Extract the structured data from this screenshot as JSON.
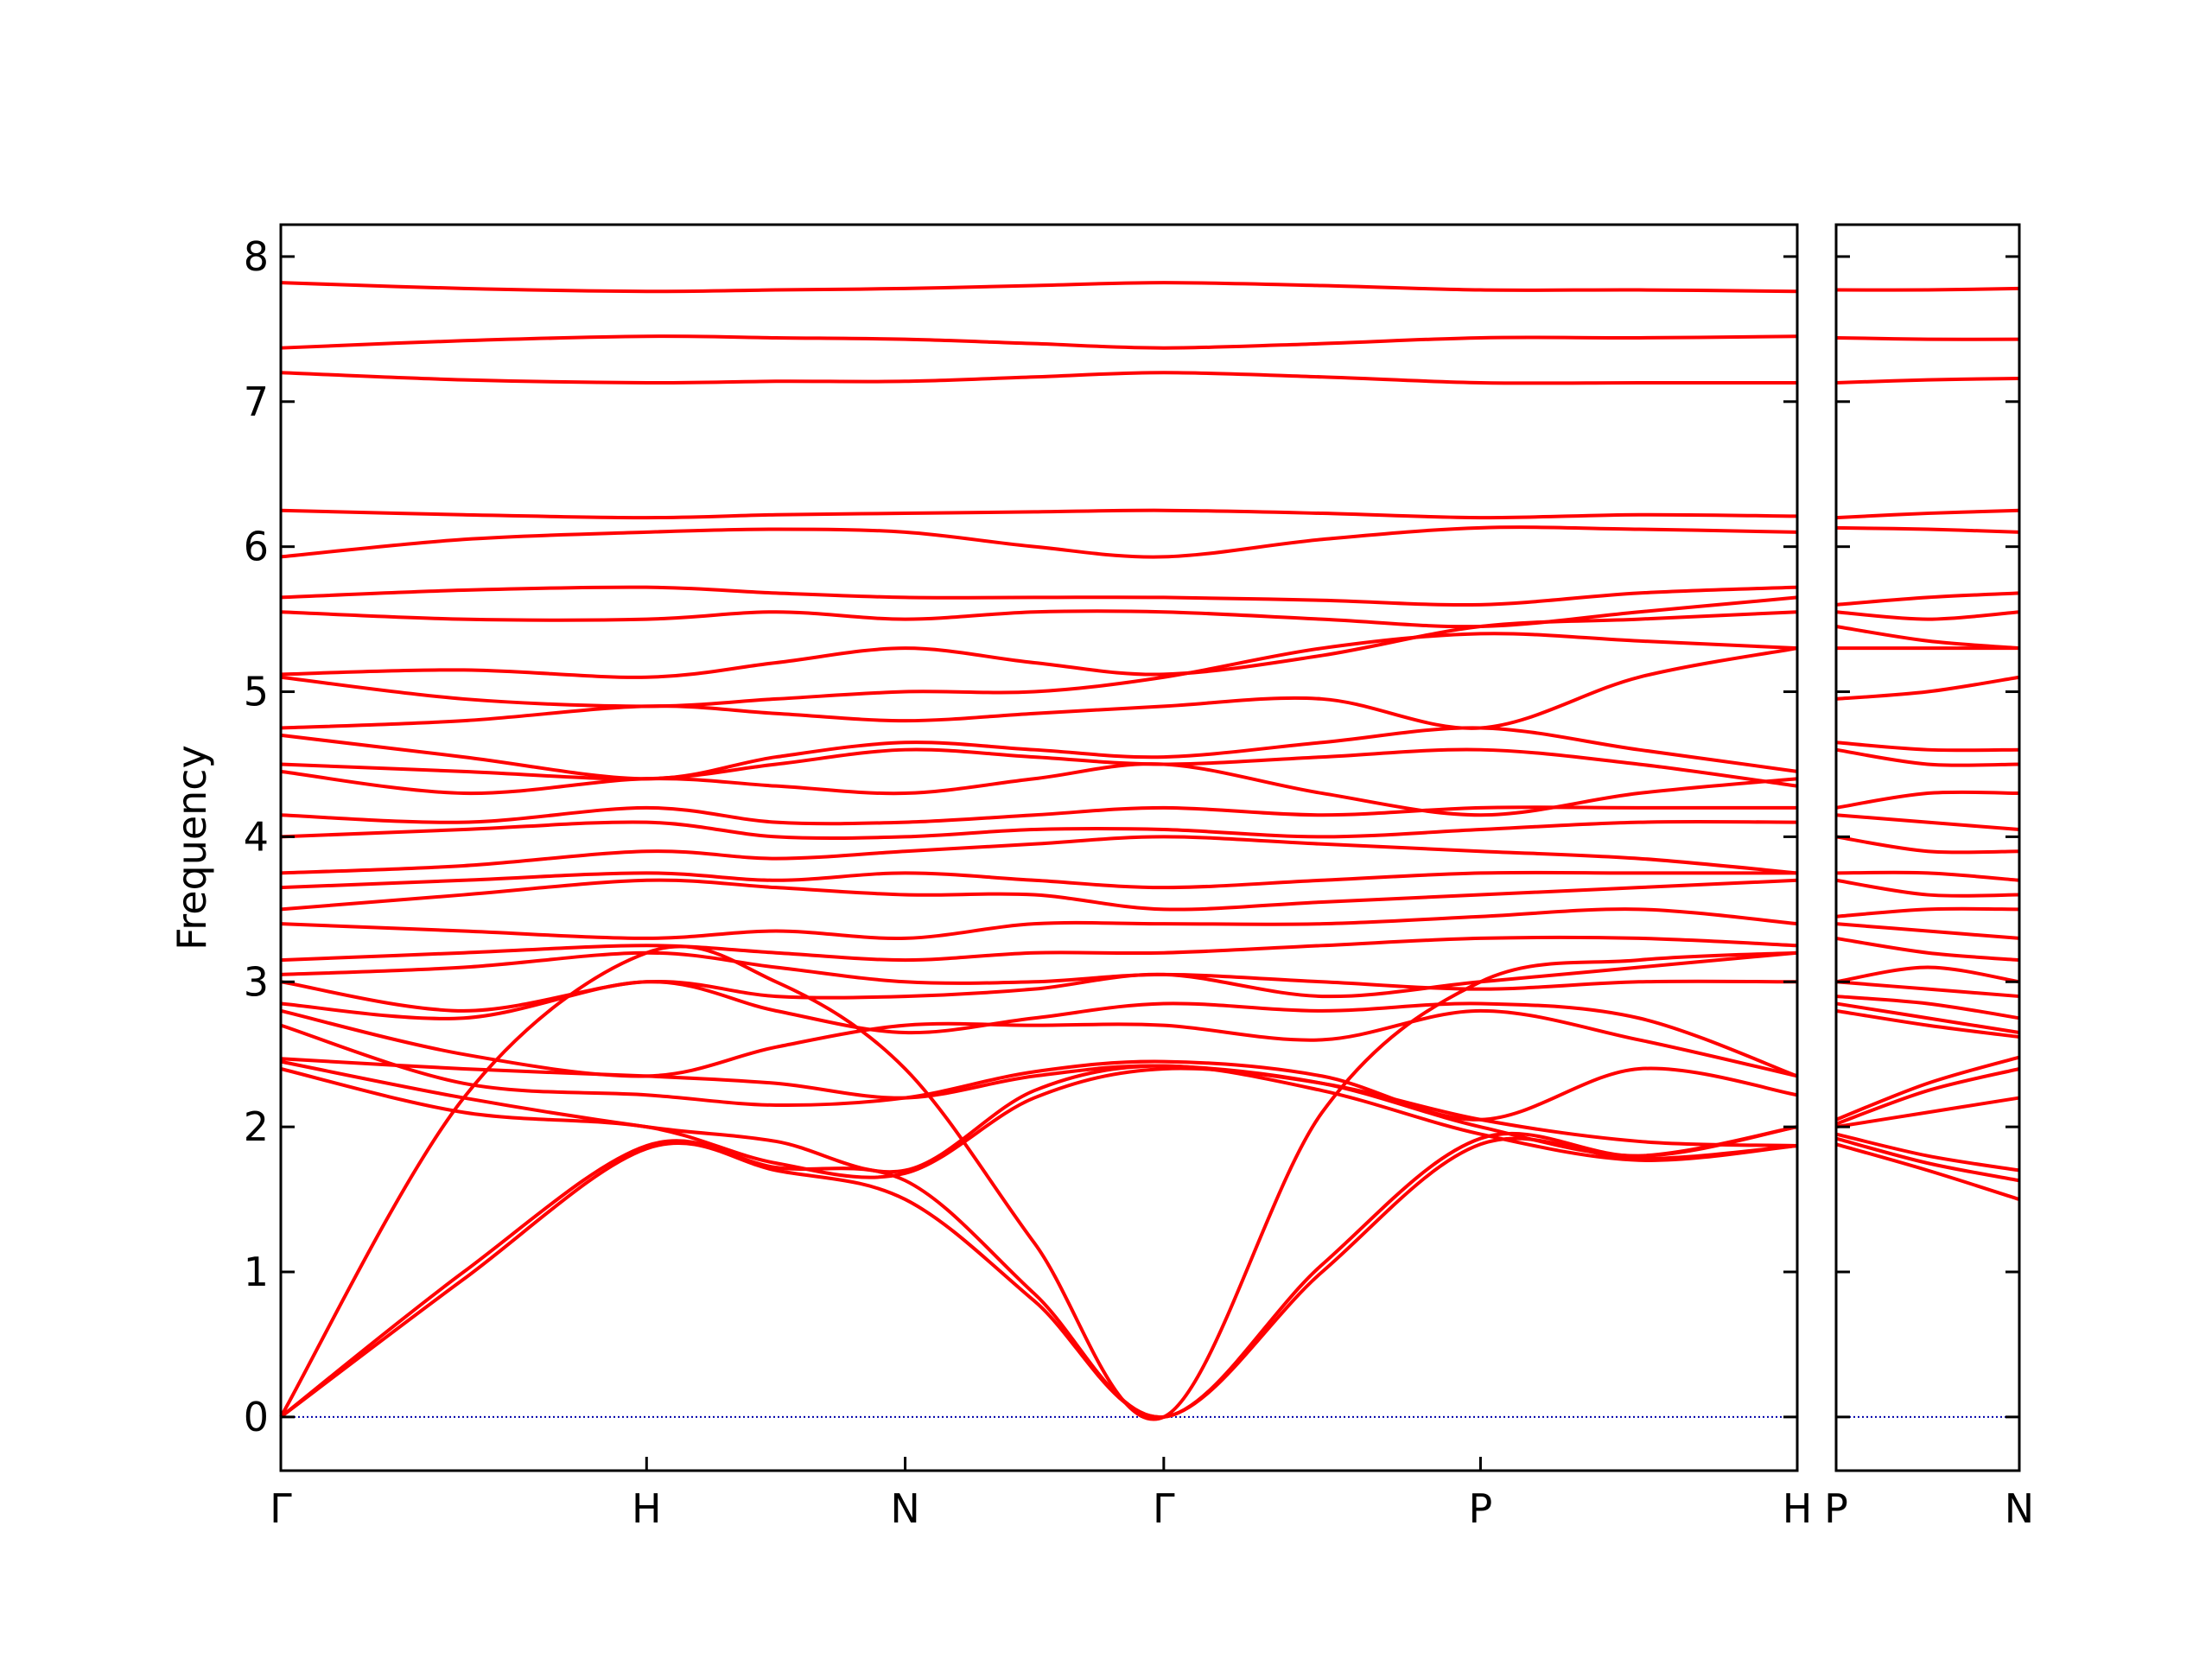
{
  "chart_data": [
    {
      "type": "line",
      "ylabel": "Frequency",
      "color": "#ff0000",
      "hline": 0,
      "hline_color": "#0000aa",
      "xlim": [
        0,
        4.146
      ],
      "ylim": [
        -0.37,
        8.22
      ],
      "xticks": [
        {
          "value": 0,
          "label": "Γ"
        },
        {
          "value": 1,
          "label": "H"
        },
        {
          "value": 1.707,
          "label": "N"
        },
        {
          "value": 2.414,
          "label": "Γ"
        },
        {
          "value": 3.28,
          "label": "P"
        },
        {
          "value": 4.146,
          "label": "H"
        }
      ],
      "yticks": [
        0,
        1,
        2,
        3,
        4,
        5,
        6,
        7,
        8
      ],
      "x": [
        0,
        0.5,
        1,
        1.354,
        1.707,
        2.06,
        2.414,
        2.847,
        3.28,
        3.713,
        4.146
      ],
      "series": [
        {
          "values": [
            0,
            0.95,
            1.85,
            1.7,
            1.5,
            0.8,
            0,
            1.0,
            1.88,
            1.78,
            1.87
          ]
        },
        {
          "values": [
            0,
            1.0,
            1.87,
            1.72,
            1.63,
            0.85,
            0,
            1.05,
            1.92,
            1.8,
            2.0
          ]
        },
        {
          "values": [
            0,
            2.2,
            3.2,
            3.0,
            2.4,
            1.2,
            0,
            2.1,
            3.0,
            3.15,
            3.2
          ]
        },
        {
          "values": [
            2.4,
            2.1,
            2.0,
            1.75,
            1.68,
            2.2,
            2.4,
            2.3,
            2.05,
            1.9,
            1.87
          ]
        },
        {
          "values": [
            2.45,
            2.2,
            2.0,
            1.9,
            1.7,
            2.25,
            2.42,
            2.25,
            1.95,
            1.77,
            1.87
          ]
        },
        {
          "values": [
            2.47,
            2.4,
            2.35,
            2.3,
            2.2,
            2.35,
            2.42,
            2.3,
            2.0,
            1.8,
            2.0
          ]
        },
        {
          "values": [
            2.7,
            2.3,
            2.22,
            2.15,
            2.2,
            2.38,
            2.45,
            2.35,
            2.05,
            2.4,
            2.22
          ]
        },
        {
          "values": [
            2.8,
            2.5,
            2.35,
            2.55,
            2.7,
            2.7,
            2.7,
            2.6,
            2.8,
            2.6,
            2.35
          ]
        },
        {
          "values": [
            2.85,
            2.75,
            3.0,
            2.8,
            2.65,
            2.75,
            2.85,
            2.8,
            2.85,
            2.75,
            2.35
          ]
        },
        {
          "values": [
            3.0,
            2.8,
            3.0,
            2.9,
            2.9,
            2.95,
            3.05,
            2.9,
            3.0,
            3.1,
            3.2
          ]
        },
        {
          "values": [
            3.05,
            3.1,
            3.2,
            3.1,
            3.0,
            3.0,
            3.05,
            3.0,
            2.95,
            3.0,
            3.0
          ]
        },
        {
          "values": [
            3.15,
            3.2,
            3.25,
            3.2,
            3.15,
            3.2,
            3.2,
            3.25,
            3.3,
            3.3,
            3.25
          ]
        },
        {
          "values": [
            3.4,
            3.35,
            3.3,
            3.35,
            3.3,
            3.4,
            3.4,
            3.4,
            3.45,
            3.5,
            3.4
          ]
        },
        {
          "values": [
            3.5,
            3.6,
            3.7,
            3.65,
            3.6,
            3.6,
            3.5,
            3.55,
            3.6,
            3.65,
            3.7
          ]
        },
        {
          "values": [
            3.65,
            3.7,
            3.75,
            3.7,
            3.75,
            3.7,
            3.65,
            3.7,
            3.75,
            3.75,
            3.75
          ]
        },
        {
          "values": [
            3.75,
            3.8,
            3.9,
            3.85,
            3.9,
            3.95,
            4.0,
            3.95,
            3.9,
            3.85,
            3.75
          ]
        },
        {
          "values": [
            4.0,
            4.05,
            4.1,
            4.0,
            4.0,
            4.05,
            4.05,
            4.0,
            4.05,
            4.1,
            4.1
          ]
        },
        {
          "values": [
            4.15,
            4.1,
            4.2,
            4.1,
            4.1,
            4.15,
            4.2,
            4.15,
            4.2,
            4.2,
            4.2
          ]
        },
        {
          "values": [
            4.45,
            4.3,
            4.4,
            4.35,
            4.3,
            4.4,
            4.5,
            4.3,
            4.15,
            4.3,
            4.4
          ]
        },
        {
          "values": [
            4.5,
            4.45,
            4.4,
            4.5,
            4.6,
            4.55,
            4.5,
            4.55,
            4.6,
            4.5,
            4.35
          ]
        },
        {
          "values": [
            4.7,
            4.55,
            4.4,
            4.55,
            4.65,
            4.6,
            4.55,
            4.65,
            4.75,
            4.6,
            4.45
          ]
        },
        {
          "values": [
            4.75,
            4.8,
            4.9,
            4.85,
            4.8,
            4.85,
            4.9,
            4.95,
            4.75,
            5.1,
            5.3
          ]
        },
        {
          "values": [
            5.1,
            4.95,
            4.9,
            4.95,
            5.0,
            5.0,
            5.1,
            5.3,
            5.4,
            5.35,
            5.3
          ]
        },
        {
          "values": [
            5.12,
            5.15,
            5.1,
            5.2,
            5.3,
            5.2,
            5.12,
            5.25,
            5.45,
            5.5,
            5.55
          ]
        },
        {
          "values": [
            5.55,
            5.5,
            5.5,
            5.55,
            5.5,
            5.55,
            5.55,
            5.5,
            5.45,
            5.55,
            5.65
          ]
        },
        {
          "values": [
            5.65,
            5.7,
            5.72,
            5.68,
            5.65,
            5.65,
            5.65,
            5.63,
            5.6,
            5.68,
            5.72
          ]
        },
        {
          "values": [
            5.93,
            6.05,
            6.1,
            6.12,
            6.1,
            6.0,
            5.93,
            6.05,
            6.13,
            6.12,
            6.1
          ]
        },
        {
          "values": [
            6.25,
            6.22,
            6.2,
            6.22,
            6.23,
            6.24,
            6.25,
            6.23,
            6.2,
            6.22,
            6.21
          ]
        },
        {
          "values": [
            7.2,
            7.15,
            7.13,
            7.14,
            7.14,
            7.17,
            7.2,
            7.17,
            7.13,
            7.13,
            7.13
          ]
        },
        {
          "values": [
            7.37,
            7.42,
            7.45,
            7.44,
            7.43,
            7.4,
            7.37,
            7.4,
            7.44,
            7.44,
            7.45
          ]
        },
        {
          "values": [
            7.82,
            7.78,
            7.76,
            7.77,
            7.78,
            7.8,
            7.82,
            7.8,
            7.77,
            7.77,
            7.76
          ]
        }
      ]
    },
    {
      "type": "line",
      "color": "#ff0000",
      "hline": 0,
      "hline_color": "#0000aa",
      "ytick_labels": false,
      "xlim": [
        0,
        0.5
      ],
      "ylim": [
        -0.37,
        8.22
      ],
      "xticks": [
        {
          "value": 0,
          "label": "P"
        },
        {
          "value": 0.5,
          "label": "N"
        }
      ],
      "yticks": [
        0,
        1,
        2,
        3,
        4,
        5,
        6,
        7,
        8
      ],
      "x": [
        0,
        0.25,
        0.5
      ],
      "series": [
        {
          "values": [
            1.88,
            1.7,
            1.5
          ]
        },
        {
          "values": [
            1.92,
            1.75,
            1.63
          ]
        },
        {
          "values": [
            1.95,
            1.8,
            1.7
          ]
        },
        {
          "values": [
            2.0,
            2.1,
            2.2
          ]
        },
        {
          "values": [
            2.02,
            2.25,
            2.4
          ]
        },
        {
          "values": [
            2.05,
            2.3,
            2.48
          ]
        },
        {
          "values": [
            2.8,
            2.7,
            2.62
          ]
        },
        {
          "values": [
            2.85,
            2.75,
            2.65
          ]
        },
        {
          "values": [
            2.9,
            2.85,
            2.75
          ]
        },
        {
          "values": [
            3.0,
            2.95,
            2.9
          ]
        },
        {
          "values": [
            3.0,
            3.1,
            3.0
          ]
        },
        {
          "values": [
            3.3,
            3.2,
            3.15
          ]
        },
        {
          "values": [
            3.4,
            3.35,
            3.3
          ]
        },
        {
          "values": [
            3.45,
            3.5,
            3.5
          ]
        },
        {
          "values": [
            3.7,
            3.6,
            3.6
          ]
        },
        {
          "values": [
            3.75,
            3.75,
            3.7
          ]
        },
        {
          "values": [
            4.0,
            3.9,
            3.9
          ]
        },
        {
          "values": [
            4.15,
            4.1,
            4.05
          ]
        },
        {
          "values": [
            4.2,
            4.3,
            4.3
          ]
        },
        {
          "values": [
            4.6,
            4.5,
            4.5
          ]
        },
        {
          "values": [
            4.65,
            4.6,
            4.6
          ]
        },
        {
          "values": [
            4.95,
            5.0,
            5.1
          ]
        },
        {
          "values": [
            5.3,
            5.3,
            5.3
          ]
        },
        {
          "values": [
            5.45,
            5.35,
            5.3
          ]
        },
        {
          "values": [
            5.55,
            5.5,
            5.55
          ]
        },
        {
          "values": [
            5.6,
            5.65,
            5.68
          ]
        },
        {
          "values": [
            6.13,
            6.12,
            6.1
          ]
        },
        {
          "values": [
            6.2,
            6.23,
            6.25
          ]
        },
        {
          "values": [
            7.13,
            7.15,
            7.16
          ]
        },
        {
          "values": [
            7.44,
            7.43,
            7.43
          ]
        },
        {
          "values": [
            7.77,
            7.77,
            7.78
          ]
        }
      ]
    }
  ]
}
